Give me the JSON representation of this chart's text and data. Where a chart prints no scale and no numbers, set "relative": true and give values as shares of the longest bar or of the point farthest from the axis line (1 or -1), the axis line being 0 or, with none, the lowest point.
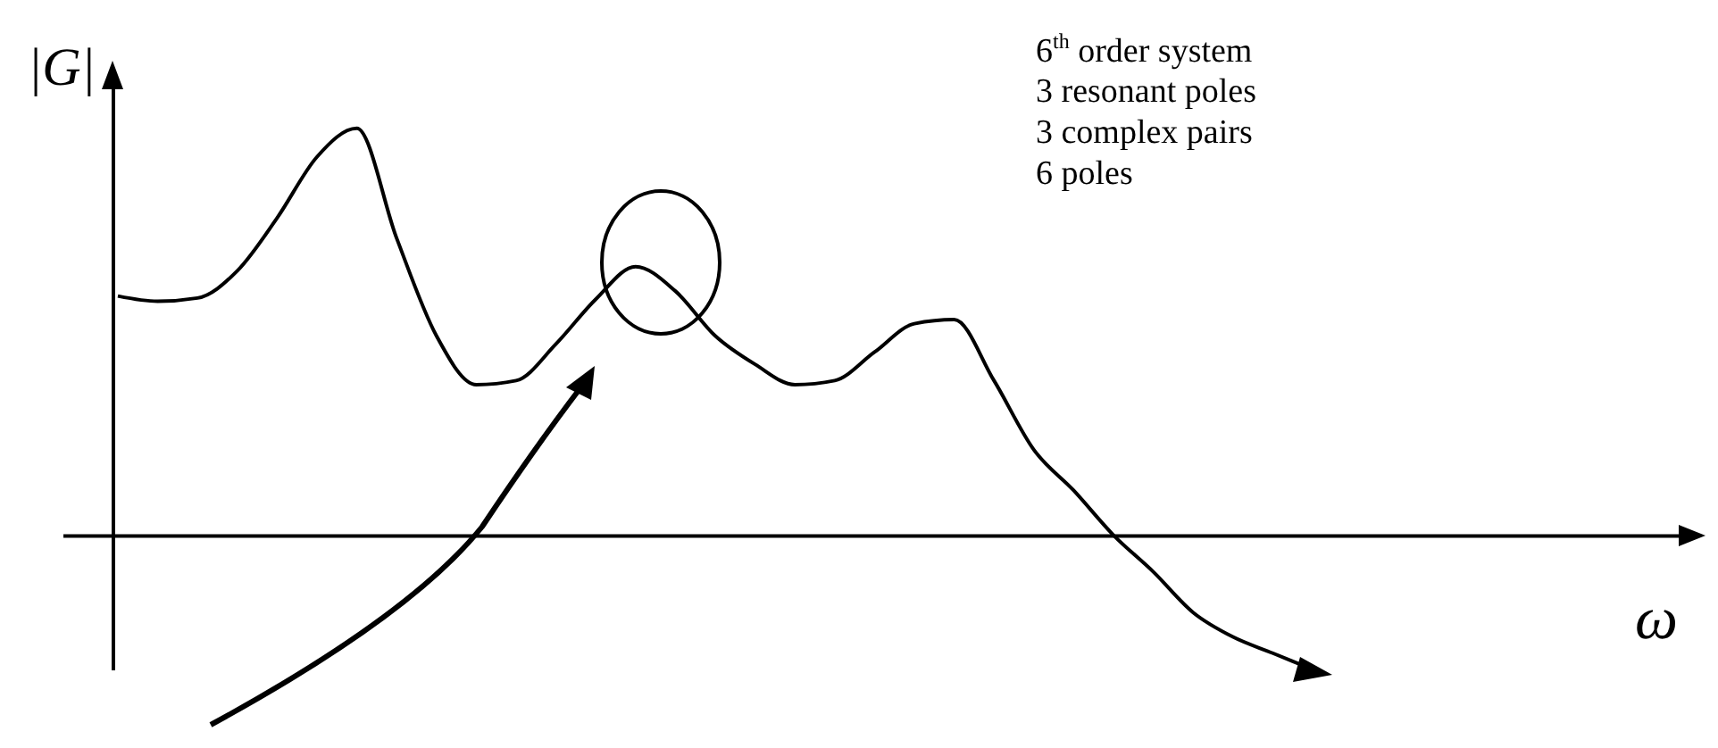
{
  "chart_data": {
    "type": "line",
    "relative": true,
    "xlabel": "ω",
    "ylabel": "|G|",
    "annotations": [
      "6$^{th}$ order system",
      "3 resonant poles",
      "3 complex pairs",
      "6 poles"
    ],
    "categories": [
      null,
      null,
      null,
      null,
      null,
      null,
      null,
      null,
      null,
      null,
      null,
      null,
      null,
      null,
      null,
      null,
      null,
      null,
      null,
      null,
      null,
      null,
      null,
      null,
      null,
      null,
      null,
      null,
      null,
      null,
      null
    ],
    "series": [
      {
        "color": "#000000",
        "values": [
          0.588,
          0.575,
          0.583,
          0.65,
          0.78,
          0.93,
          1,
          0.73,
          0.49,
          0.37,
          0.38,
          0.47,
          0.58,
          0.66,
          0.6,
          0.49,
          0.42,
          0.37,
          0.38,
          0.45,
          0.52,
          0.53,
          0.38,
          0.21,
          0.11,
          0,
          -0.09,
          -0.19,
          -0.25,
          -0.29,
          -0.33
        ]
      }
    ]
  }
}
